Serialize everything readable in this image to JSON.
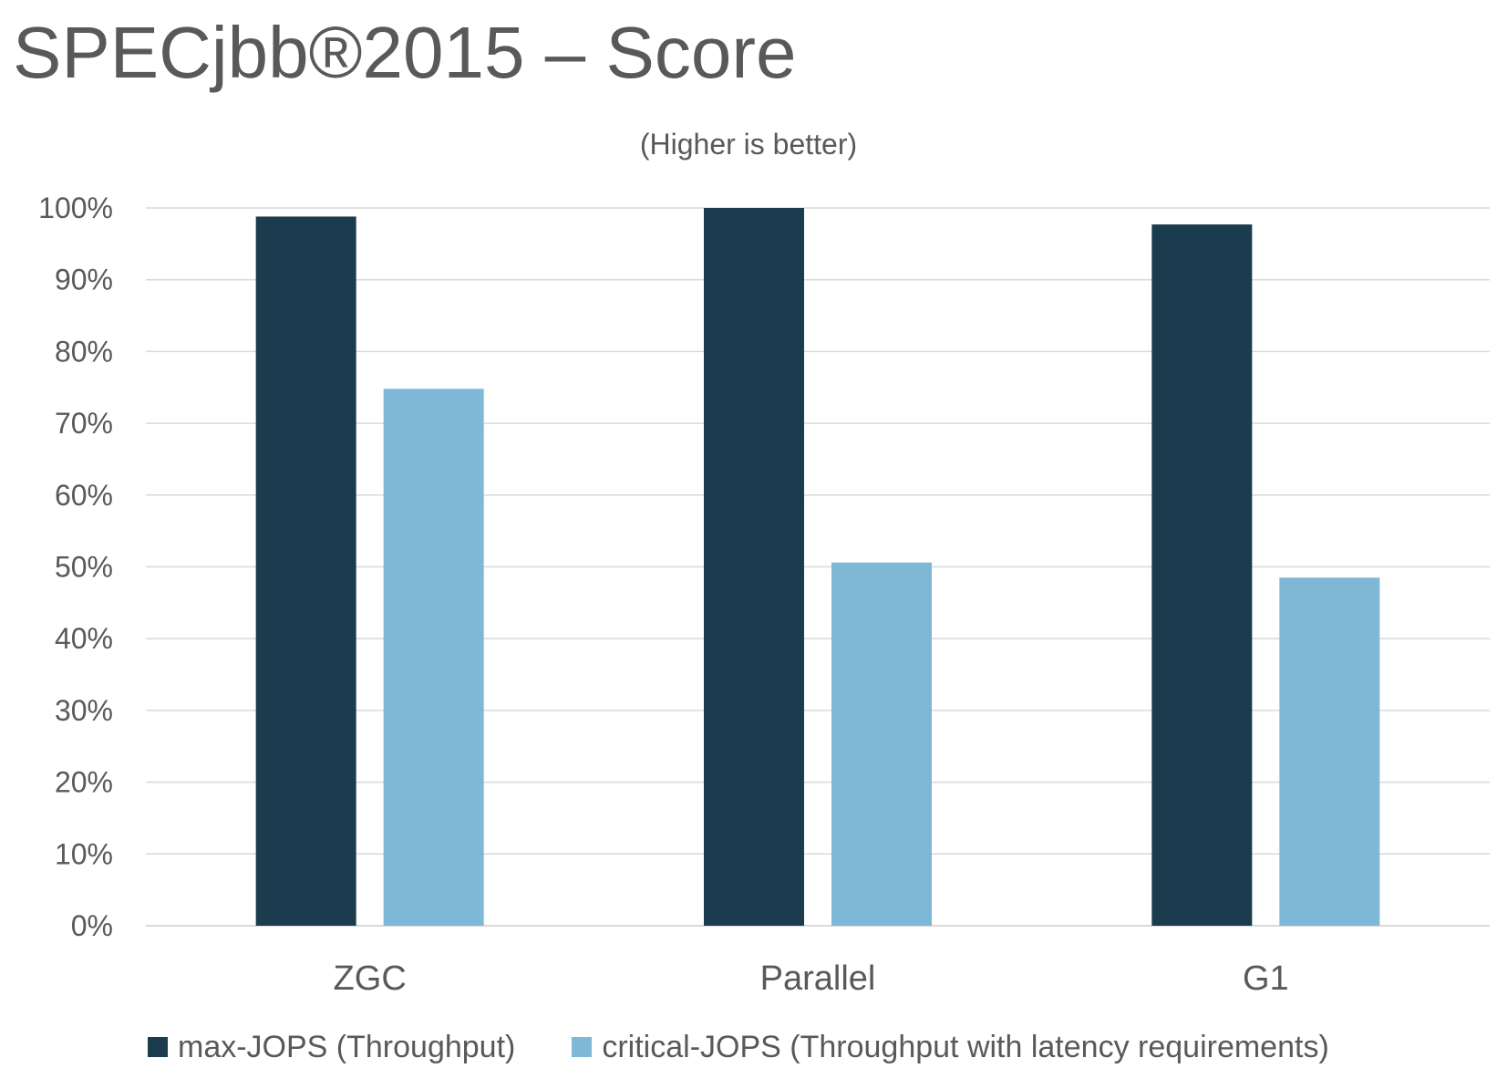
{
  "chart_data": {
    "type": "bar",
    "title": "SPECjbb®2015 – Score",
    "subtitle": "(Higher is better)",
    "xlabel": "",
    "ylabel": "",
    "categories": [
      "ZGC",
      "Parallel",
      "G1"
    ],
    "series": [
      {
        "name": "max-JOPS (Throughput)",
        "color": "#1b3b4e",
        "values": [
          98.8,
          100,
          97.7
        ]
      },
      {
        "name": "critical-JOPS (Throughput with latency requirements)",
        "color": "#7fb7d6",
        "values": [
          74.8,
          50.6,
          48.5
        ]
      }
    ],
    "ylim": [
      0,
      100
    ],
    "yticks": [
      "0%",
      "10%",
      "20%",
      "30%",
      "40%",
      "50%",
      "60%",
      "70%",
      "80%",
      "90%",
      "100%"
    ],
    "grid": true,
    "gridline_color": "#d9d9d9",
    "legend_position": "bottom"
  }
}
